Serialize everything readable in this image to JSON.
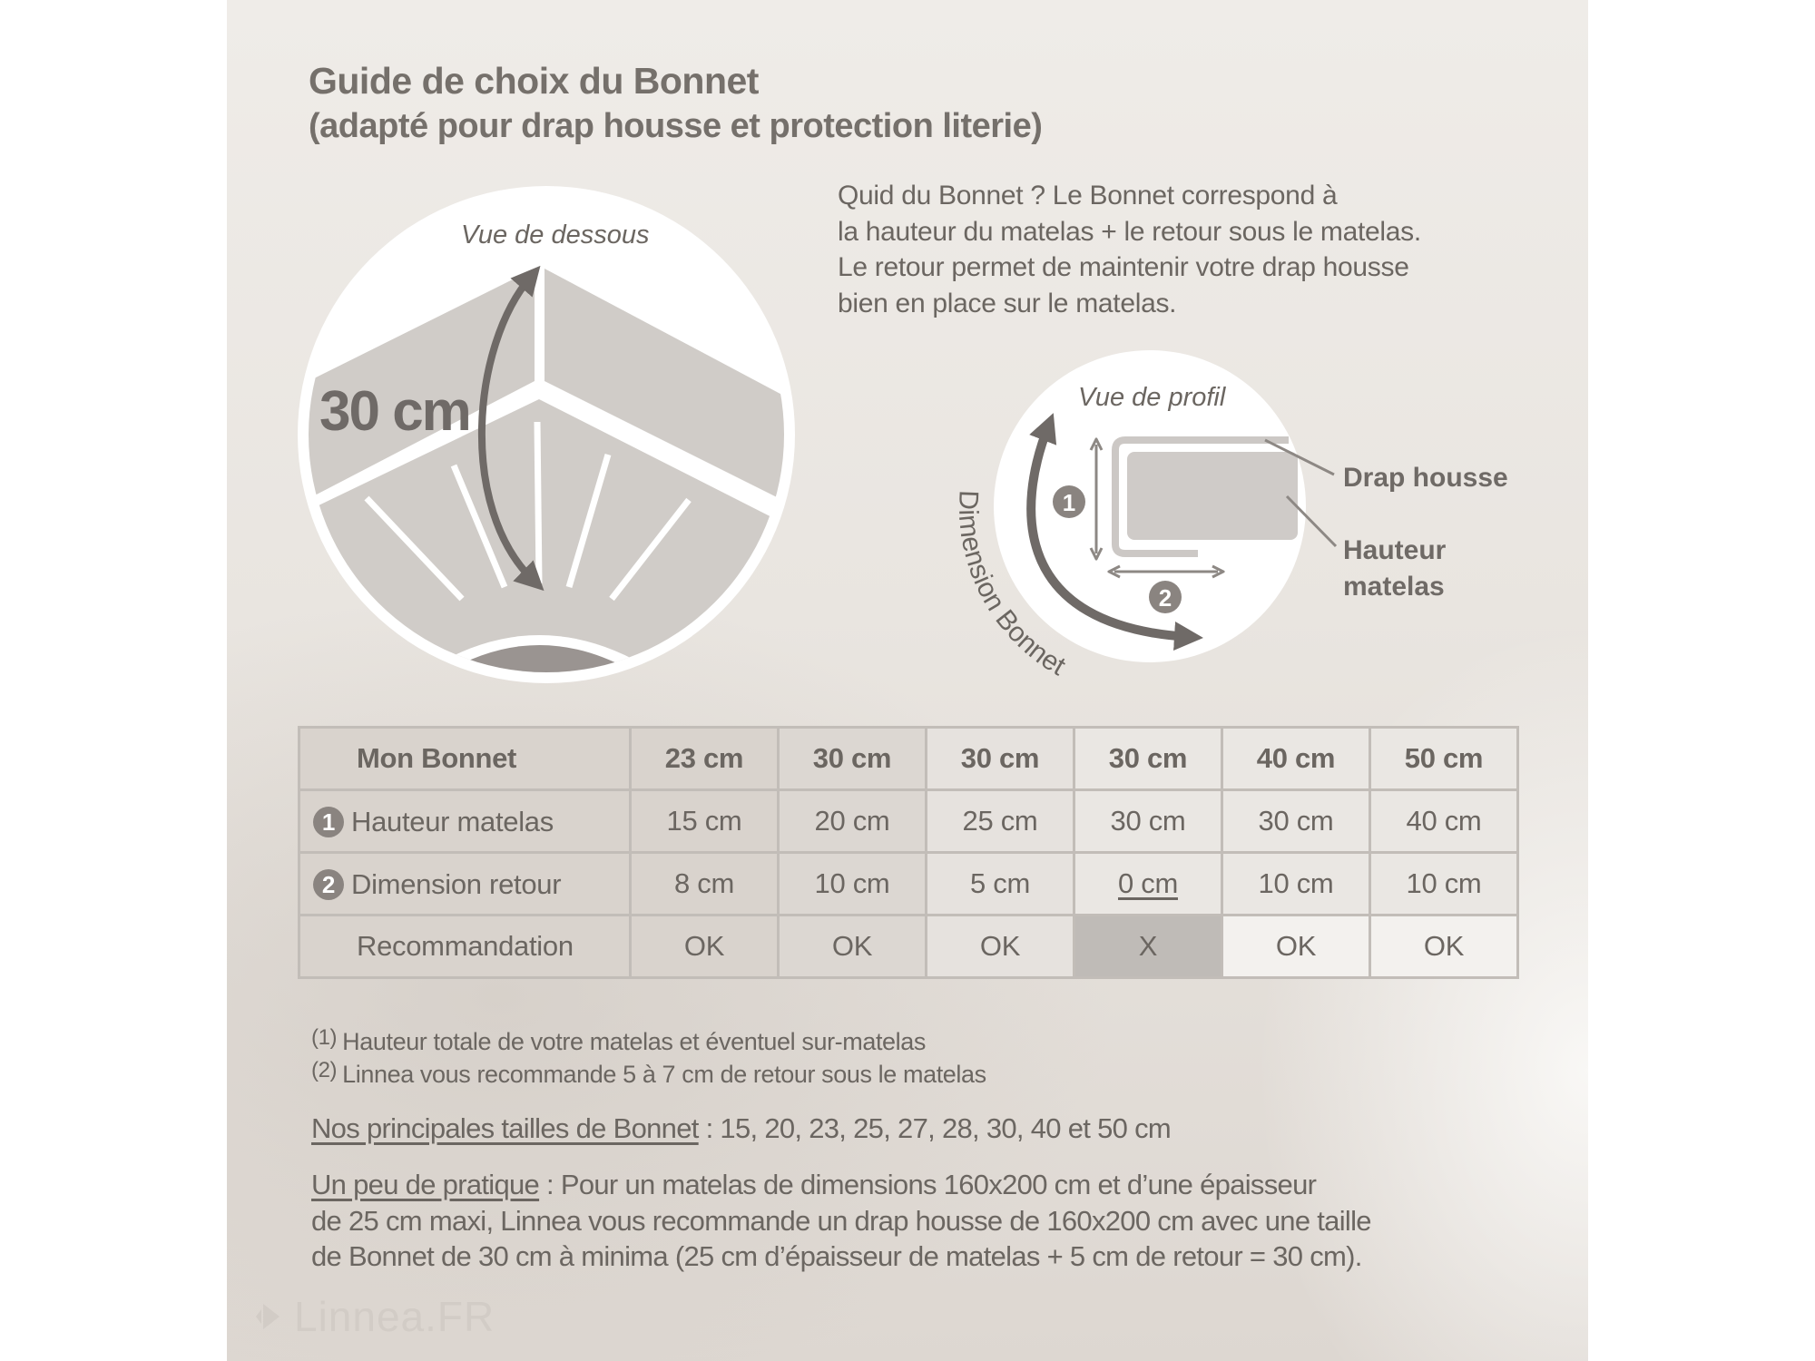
{
  "title": "Guide de choix du Bonnet",
  "subtitle": "(adapté pour drap housse et protection literie)",
  "intro_lines": [
    "Quid du Bonnet ? Le Bonnet correspond à",
    "la hauteur du matelas + le retour sous le matelas.",
    "Le retour permet de maintenir votre drap housse",
    "bien en place sur le matelas."
  ],
  "diagram_bottom": {
    "caption": "Vue de dessous",
    "measure": "30 cm"
  },
  "diagram_profile": {
    "caption": "Vue de profil",
    "curve_label": "Dimension Bonnet",
    "label_sheet": "Drap housse",
    "label_height_1": "Hauteur",
    "label_height_2": "matelas",
    "badge_1": "1",
    "badge_2": "2"
  },
  "table": {
    "header": {
      "label": "Mon Bonnet",
      "values": [
        "23 cm",
        "30 cm",
        "30 cm",
        "30 cm",
        "40 cm",
        "50 cm"
      ]
    },
    "rows": [
      {
        "badge": "1",
        "label": "Hauteur matelas",
        "values": [
          "15 cm",
          "20 cm",
          "25 cm",
          "30 cm",
          "30 cm",
          "40 cm"
        ]
      },
      {
        "badge": "2",
        "label": "Dimension retour",
        "values": [
          "8 cm",
          "10 cm",
          "5 cm",
          "0 cm",
          "10 cm",
          "10 cm"
        ]
      },
      {
        "badge": "",
        "label": "Recommandation",
        "values": [
          "OK",
          "OK",
          "OK",
          "X",
          "OK",
          "OK"
        ]
      }
    ]
  },
  "footnotes": [
    {
      "mark": "(1)",
      "text": "Hauteur totale de votre matelas et éventuel sur-matelas"
    },
    {
      "mark": "(2)",
      "text": "Linnea vous recommande 5 à 7 cm de retour sous le matelas"
    }
  ],
  "sizes": {
    "label": "Nos principales tailles de Bonnet",
    "text": " : 15, 20, 23, 25, 27, 28, 30, 40 et 50 cm"
  },
  "practice": {
    "label": "Un peu de pratique",
    "line1": " : Pour un matelas de dimensions 160x200 cm et d’une épaisseur",
    "line2": "de 25 cm maxi, Linnea vous recommande un drap housse de 160x200 cm avec une taille",
    "line3": "de Bonnet de 30 cm à minima (25 cm d’épaisseur de matelas + 5 cm de retour = 30 cm)."
  },
  "logo": "Linnea.FR",
  "colors": {
    "text": "#6b6661",
    "fabric": "#d0ccc8",
    "arrow": "#6f6a67",
    "cell_not_ok": "#bfbbb7"
  }
}
